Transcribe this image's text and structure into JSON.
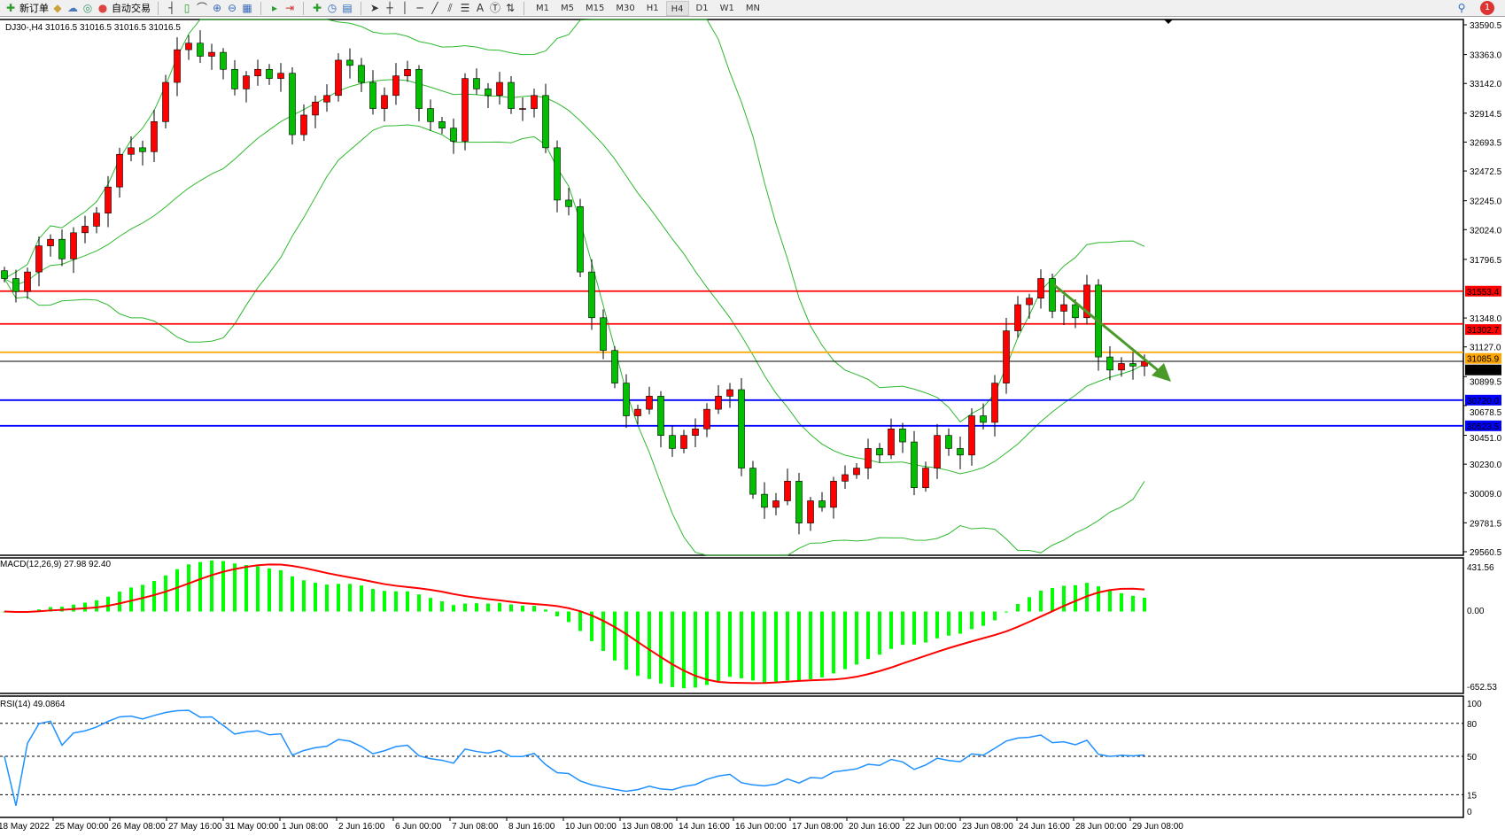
{
  "toolbar": {
    "new_order": "新订单",
    "auto_trading": "自动交易",
    "icons": [
      "search-icon",
      "new-order-icon",
      "gold-icon",
      "cloud-icon",
      "signal-icon",
      "auto-trading-icon",
      "bar-chart-icon",
      "candle-chart-icon",
      "line-chart-icon",
      "zoom-in-icon",
      "zoom-out-icon",
      "tile-icon",
      "autoscroll-icon",
      "chart-shift-icon",
      "add-indicator-icon",
      "clock-icon",
      "template-icon",
      "cursor-icon",
      "crosshair-icon",
      "vertical-line-icon",
      "horizontal-line-icon",
      "trendline-icon",
      "channel-icon",
      "fibonacci-icon",
      "text-icon",
      "label-icon",
      "arrows-icon"
    ],
    "timeframes": [
      "M1",
      "M5",
      "M15",
      "M30",
      "H1",
      "H4",
      "D1",
      "W1",
      "MN"
    ],
    "active_timeframe": "H4",
    "notification_count": "1"
  },
  "main": {
    "legend": "DJ30-,H4  31016.5 31016.5 31016.5 31016.5",
    "price_ticks": [
      "33590.5",
      "33363.0",
      "33142.0",
      "32914.5",
      "32693.5",
      "32472.5",
      "32245.0",
      "32024.0",
      "31796.5",
      "31348.0",
      "31127.0",
      "30899.5",
      "30678.5",
      "30451.0",
      "30230.0",
      "30009.0",
      "29781.5",
      "29560.5"
    ],
    "price_range": [
      29560.5,
      33590.5
    ],
    "levels": [
      {
        "price": "31553.4",
        "color": "#ff0000"
      },
      {
        "price": "31302.7",
        "color": "#ff0000"
      },
      {
        "price": "31085.9",
        "color": "#ffa500"
      },
      {
        "price": "31016.5",
        "color": "#000000"
      },
      {
        "price": "30720.0",
        "color": "#0000ff"
      },
      {
        "price": "30523.5",
        "color": "#0000ff"
      }
    ],
    "bull_color": "#ff0000",
    "bear_color": "#00c000",
    "band_color": "#2eb82e",
    "arrow_color": "#4a9a2a"
  },
  "chart_data": {
    "type": "candlestick",
    "symbol": "DJ30-",
    "timeframe": "H4",
    "close": [
      31650,
      31550,
      31700,
      31900,
      31950,
      31800,
      32000,
      32050,
      32150,
      32350,
      32600,
      32650,
      32620,
      32850,
      33150,
      33400,
      33450,
      33350,
      33380,
      33250,
      33100,
      33200,
      33250,
      33180,
      33220,
      32750,
      32900,
      33000,
      33050,
      33320,
      33280,
      33150,
      32950,
      33050,
      33200,
      33250,
      32950,
      32850,
      32800,
      32700,
      33180,
      33100,
      33050,
      33150,
      32950,
      32950,
      33050,
      32650,
      32250,
      32200,
      31700,
      31350,
      31100,
      30850,
      30600,
      30650,
      30750,
      30450,
      30350,
      30450,
      30500,
      30650,
      30750,
      30800,
      30200,
      30000,
      29900,
      29950,
      30100,
      29780,
      29950,
      29900,
      30100,
      30150,
      30200,
      30350,
      30300,
      30500,
      30400,
      30050,
      30200,
      30450,
      30350,
      30300,
      30600,
      30550,
      30850,
      31250,
      31450,
      31500,
      31650,
      31400,
      31450,
      31350,
      31600,
      31050,
      30950,
      31000,
      30980,
      31016.5
    ],
    "time_labels": [
      "18 May 2022",
      "25 May 00:00",
      "26 May 08:00",
      "27 May 16:00",
      "31 May 00:00",
      "1 Jun 08:00",
      "2 Jun 16:00",
      "6 Jun 00:00",
      "7 Jun 08:00",
      "8 Jun 16:00",
      "10 Jun 00:00",
      "13 Jun 08:00",
      "14 Jun 16:00",
      "16 Jun 00:00",
      "17 Jun 08:00",
      "20 Jun 16:00",
      "22 Jun 00:00",
      "23 Jun 08:00",
      "24 Jun 16:00",
      "28 Jun 00:00",
      "29 Jun 08:00"
    ],
    "indicators": [
      "Bollinger Bands",
      "MACD(12,26,9)",
      "RSI(14)"
    ]
  },
  "macd": {
    "label": "MACD(12,26,9) 27.98 92.40",
    "ticks": [
      "431.56",
      "0.00",
      "-652.53"
    ],
    "range": [
      -652.53,
      431.56
    ],
    "hist_color": "#00ff00",
    "signal_color": "#ff0000"
  },
  "rsi": {
    "label": "RSI(14) 49.0864",
    "ticks": [
      "100",
      "80",
      "50",
      "15",
      "0"
    ],
    "levels": [
      80,
      50,
      15
    ],
    "color": "#1e90ff"
  }
}
